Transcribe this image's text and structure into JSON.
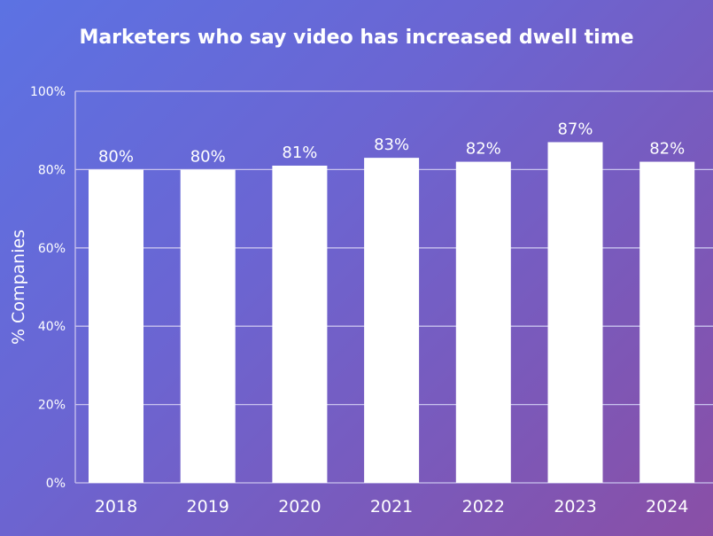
{
  "chart_data": {
    "type": "bar",
    "title": "Marketers who say video has increased dwell time",
    "xlabel": "",
    "ylabel": "% Companies",
    "categories": [
      "2018",
      "2019",
      "2020",
      "2021",
      "2022",
      "2023",
      "2024"
    ],
    "values": [
      80,
      80,
      81,
      83,
      82,
      87,
      82
    ],
    "data_labels": [
      "80%",
      "80%",
      "81%",
      "83%",
      "82%",
      "87%",
      "82%"
    ],
    "ylim": [
      0,
      100
    ],
    "yticks": [
      0,
      20,
      40,
      60,
      80,
      100
    ],
    "ytick_labels": [
      "0%",
      "20%",
      "40%",
      "60%",
      "80%",
      "100%"
    ],
    "grid": true,
    "colors": {
      "bar": "#ffffff",
      "background_start": "#5c72e3",
      "background_end": "#8a4fa6",
      "grid": "#c9c3ee",
      "text": "#ffffff"
    }
  }
}
